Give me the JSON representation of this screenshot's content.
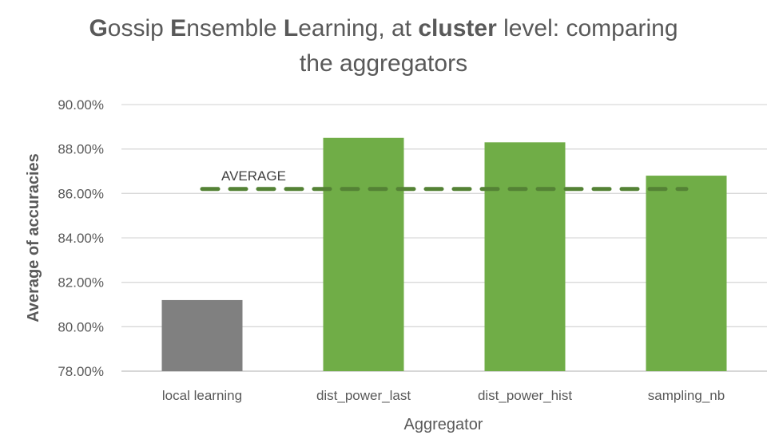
{
  "chart_data": {
    "type": "bar",
    "title": {
      "line1": [
        {
          "text": "G",
          "bold": true
        },
        {
          "text": "ossip ",
          "bold": false
        },
        {
          "text": "E",
          "bold": true
        },
        {
          "text": "nsemble ",
          "bold": false
        },
        {
          "text": "L",
          "bold": true
        },
        {
          "text": "earning, at ",
          "bold": false
        },
        {
          "text": "cluster",
          "bold": true
        },
        {
          "text": " level: comparing",
          "bold": false
        }
      ],
      "line2": [
        {
          "text": "the aggregators",
          "bold": false
        }
      ]
    },
    "xlabel": "Aggregator",
    "ylabel": "Average of accuracies",
    "categories": [
      "local learning",
      "dist_power_last",
      "dist_power_hist",
      "sampling_nb"
    ],
    "values": [
      81.2,
      88.5,
      88.3,
      86.8
    ],
    "bar_colors": [
      "#808080",
      "#70ad47",
      "#70ad47",
      "#70ad47"
    ],
    "ylim": [
      78,
      90
    ],
    "yticks": [
      78,
      80,
      82,
      84,
      86,
      88,
      90
    ],
    "ytick_labels": [
      "78.00%",
      "80.00%",
      "82.00%",
      "84.00%",
      "86.00%",
      "88.00%",
      "90.00%"
    ],
    "grid": true,
    "reference_line": {
      "label": "AVERAGE",
      "value": 86.2,
      "color": "#548235",
      "style": "dashed"
    }
  }
}
